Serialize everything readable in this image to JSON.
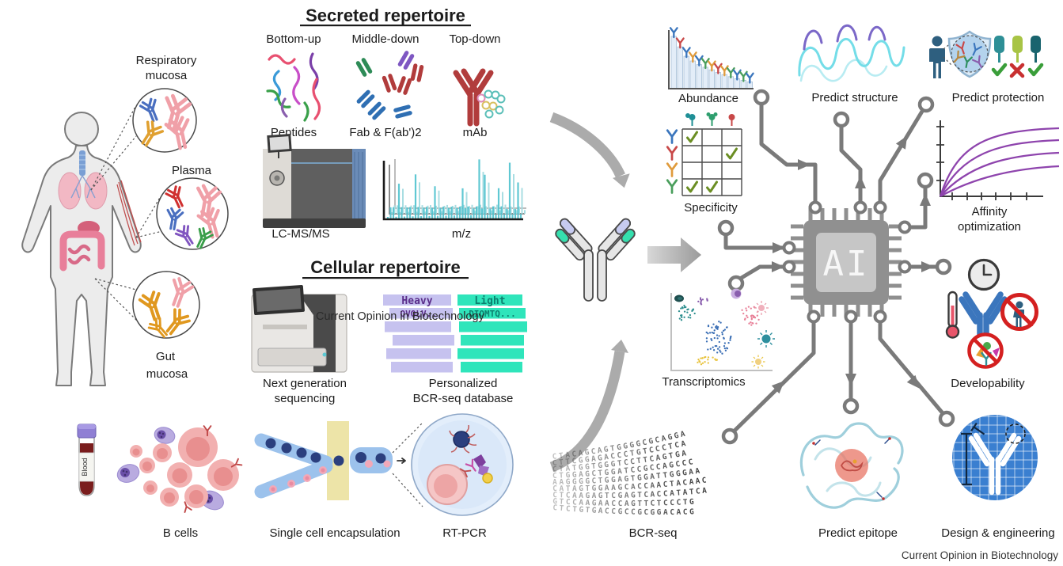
{
  "journal": {
    "watermark": "Current Opinion in Biotechnology",
    "caption": "Current Opinion in Biotechnology"
  },
  "anatomy": {
    "respiratory_line1": "Respiratory",
    "respiratory_line2": "mucosa",
    "plasma": "Plasma",
    "gut_line1": "Gut",
    "gut_line2": "mucosa"
  },
  "secreted": {
    "title": "Secreted repertoire",
    "method_bottom_up": "Bottom-up",
    "method_middle_down": "Middle-down",
    "method_top_down": "Top-down",
    "product_peptides": "Peptides",
    "product_fab": "Fab & F(ab')2",
    "product_mab": "mAb",
    "instrument": "LC-MS/MS",
    "spectrum_xlabel": "m/z"
  },
  "cellular": {
    "title": "Cellular repertoire",
    "ngs_line1": "Next generation",
    "ngs_line2": "sequencing",
    "db_line1": "Personalized",
    "db_line2": "BCR-seq database",
    "heavy_header": "Heavy",
    "light_header": "Light",
    "heavy_seq": "QVQLV...",
    "light_seq": "DIQMTQ..."
  },
  "isolation": {
    "tube_label": "Blood",
    "bcells": "B cells",
    "encapsulation": "Single cell encapsulation",
    "rtpcr": "RT-PCR"
  },
  "ai": {
    "chip": "AI",
    "abundance": "Abundance",
    "specificity": "Specificity",
    "transcriptomics": "Transcriptomics",
    "bcrseq": "BCR-seq",
    "predict_structure": "Predict structure",
    "predict_protection": "Predict protection",
    "affinity_line1": "Affinity",
    "affinity_line2": "optimization",
    "developability": "Developability",
    "predict_epitope": "Predict epitope",
    "design": "Design & engineering"
  },
  "chart_data": {
    "abundance": {
      "type": "bar",
      "title": "Abundance",
      "values": [
        100,
        80,
        62,
        53,
        46,
        41,
        36,
        31,
        27,
        23,
        19,
        16,
        13
      ],
      "marker_colors": [
        "#3b76bd",
        "#c84848",
        "#3b76bd",
        "#e09b3d",
        "#3b76bd",
        "#4a9e5c",
        "#e09b3d",
        "#c84848",
        "#e09b3d",
        "#4a9e5c",
        "#3b76bd",
        "#4a9e5c",
        "#3b76bd"
      ],
      "xlabel": "",
      "ylabel": ""
    },
    "specificity": {
      "type": "table",
      "title": "Specificity",
      "rows": 4,
      "cols": 3,
      "row_antibody_colors": [
        "#3b76bd",
        "#c84848",
        "#e09b3d",
        "#4a9e5c"
      ],
      "col_antigen_colors": [
        "#1f8f96",
        "#2e9e6e",
        "#c84848"
      ],
      "checked_cells": [
        [
          0,
          0
        ],
        [
          1,
          2
        ],
        [
          3,
          0
        ],
        [
          3,
          1
        ]
      ]
    },
    "affinity": {
      "type": "line",
      "title": "Affinity optimization",
      "curves": 4,
      "shape": "saturating binding curves",
      "color": "#8e44ad"
    },
    "mz_spectrum": {
      "type": "bar",
      "title": "m/z",
      "description": "overlaid mass spectra, teal peaks on stacked axes"
    }
  },
  "bcrseq_sequences": [
    {
      "color": "#c2622e",
      "text": "CTACAGCAGTGGGGCGCAGGA"
    },
    {
      "color": "#c2622e",
      "text": "CTTCGGAGACCCTGTCCCTCA"
    },
    {
      "color": "#2f6fb3",
      "text": "CTATGGTGGGTCCTTCAGTGA"
    },
    {
      "color": "#2f6fb3",
      "text": "CTGGAGCTGGATCCGCCAGCCC"
    },
    {
      "color": "#3a8f4a",
      "text": "AAGGGGCTGGAGTGGATTGGGAA"
    },
    {
      "color": "#3a8f4a",
      "text": "CATAGTGGAAGCACCAACTACAAC"
    },
    {
      "color": "#c03a3a",
      "text": "CTCAAGAGTCGAGTCACCATATCA"
    },
    {
      "color": "#c03a3a",
      "text": "GTCCAAGAACCAGTTCTCCCTG"
    },
    {
      "color": "#7a4fa8",
      "text": "CTCTGTGACCGCCGCGGACACG"
    }
  ],
  "colors": {
    "mab_red": "#b13c3c",
    "heavy_lavender": "#c6c2ef",
    "light_teal": "#2fe5bb",
    "spectrum_teal": "#4fc3cf",
    "circuit_gray": "#7a7a7a",
    "affinity_purple": "#8e44ad",
    "antibody_tip_teal": "#35dfae",
    "antibody_tip_lavender": "#c7cbf0",
    "prohibition_red": "#d42020",
    "blueprint_blue": "#3a7fd0"
  }
}
